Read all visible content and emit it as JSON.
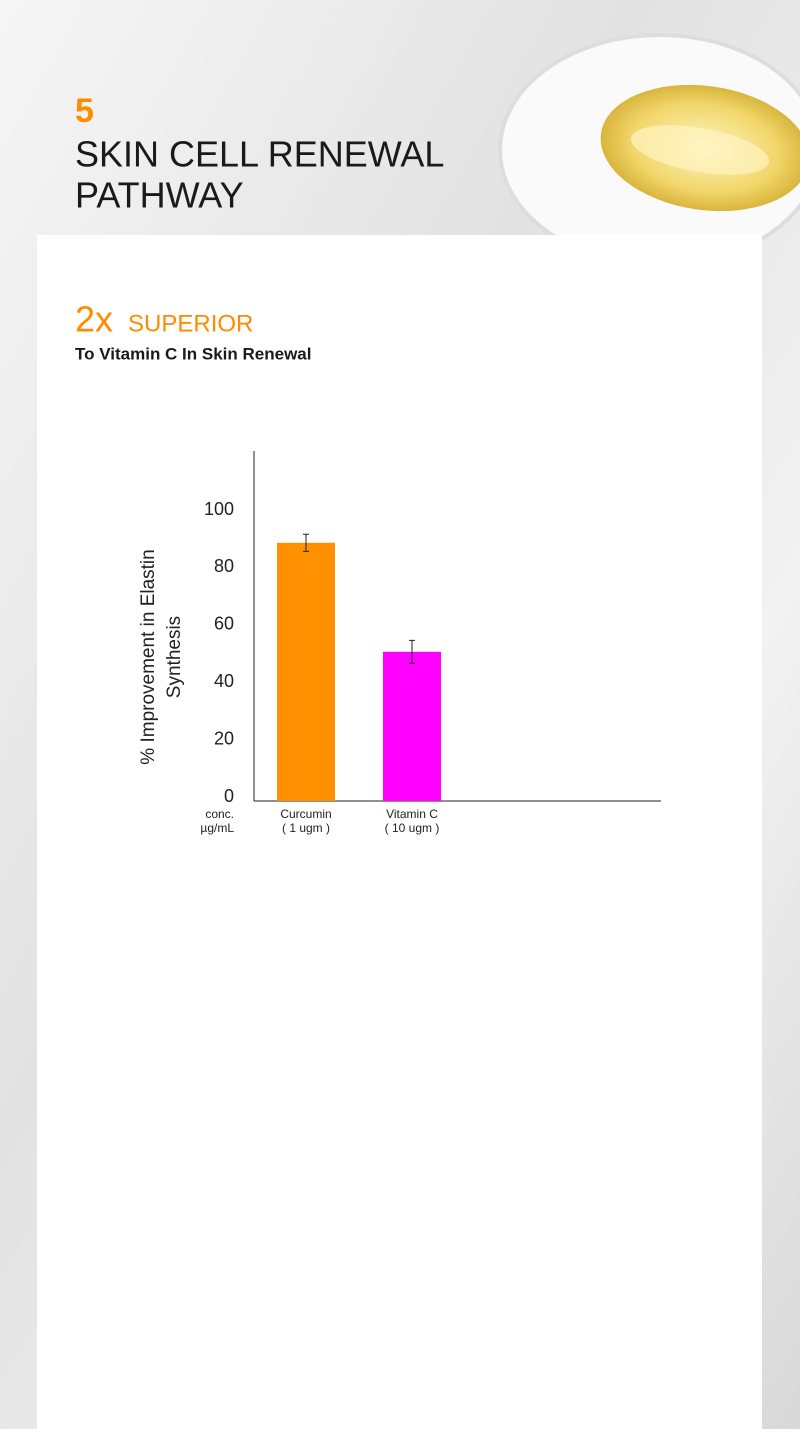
{
  "header": {
    "number": "5",
    "title_lines": [
      "SKIN CELL RENEWAL",
      "PATHWAY"
    ]
  },
  "claim": {
    "multiplier": "2x",
    "word": "SUPERIOR",
    "subtitle": "To Vitamin C In Skin Renewal"
  },
  "chart_data": {
    "type": "bar",
    "y_label_lines": [
      "% Improvement in  Elastin",
      "Synthesis"
    ],
    "x_label_lines": [
      "conc.",
      "µg/mL"
    ],
    "categories": [
      "Curcumin",
      "Vitamin C"
    ],
    "category_sublabels": [
      "( 1 ugm )",
      "( 10 ugm )"
    ],
    "values": [
      90,
      52
    ],
    "errors": [
      3,
      4
    ],
    "colors": [
      "#ff9100",
      "#ff00ff"
    ],
    "ylim": [
      0,
      122
    ],
    "yticks": [
      0,
      20,
      40,
      60,
      80,
      100
    ],
    "grid": false
  }
}
